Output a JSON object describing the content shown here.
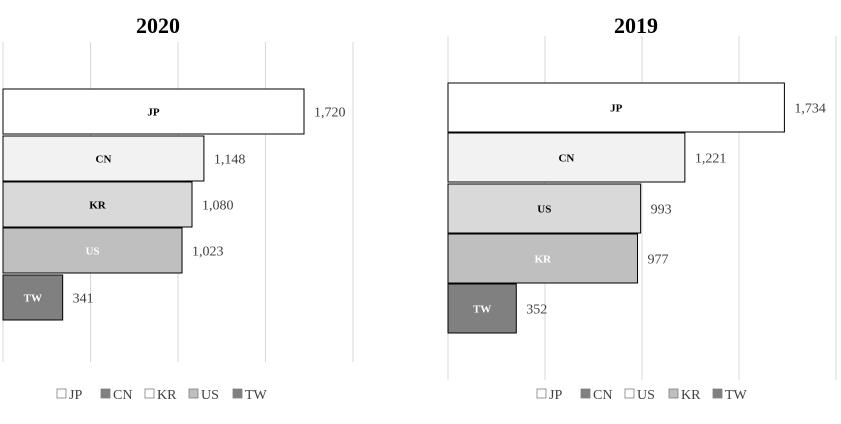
{
  "chart_data": [
    {
      "type": "bar",
      "orientation": "horizontal",
      "title": "2020",
      "categories": [
        "JP",
        "CN",
        "KR",
        "US",
        "TW"
      ],
      "values": [
        1720,
        1148,
        1080,
        1023,
        341
      ],
      "value_labels": [
        "1,720",
        "1,148",
        "1,080",
        "1,023",
        "341"
      ],
      "bar_colors": [
        "#ffffff",
        "#f2f2f2",
        "#d9d9d9",
        "#bfbfbf",
        "#808080"
      ],
      "bar_label_colors": [
        "#000000",
        "#000000",
        "#000000",
        "#ffffff",
        "#ffffff"
      ],
      "xlim": [
        0,
        2000
      ],
      "x_grid_step": 500,
      "grid": true,
      "legend": {
        "position": "bottom",
        "entries": [
          "JP",
          "CN",
          "KR",
          "US",
          "TW"
        ],
        "colors": [
          "#ffffff",
          "#808080",
          "#ffffff",
          "#bfbfbf",
          "#808080"
        ]
      }
    },
    {
      "type": "bar",
      "orientation": "horizontal",
      "title": "2019",
      "categories": [
        "JP",
        "CN",
        "US",
        "KR",
        "TW"
      ],
      "values": [
        1734,
        1221,
        993,
        977,
        352
      ],
      "value_labels": [
        "1,734",
        "1,221",
        "993",
        "977",
        "352"
      ],
      "bar_colors": [
        "#ffffff",
        "#f2f2f2",
        "#d9d9d9",
        "#bfbfbf",
        "#808080"
      ],
      "bar_label_colors": [
        "#000000",
        "#000000",
        "#000000",
        "#ffffff",
        "#ffffff"
      ],
      "xlim": [
        0,
        2000
      ],
      "x_grid_step": 500,
      "grid": true,
      "legend": {
        "position": "bottom",
        "entries": [
          "JP",
          "CN",
          "US",
          "KR",
          "TW"
        ],
        "colors": [
          "#ffffff",
          "#808080",
          "#ffffff",
          "#bfbfbf",
          "#808080"
        ]
      }
    }
  ]
}
